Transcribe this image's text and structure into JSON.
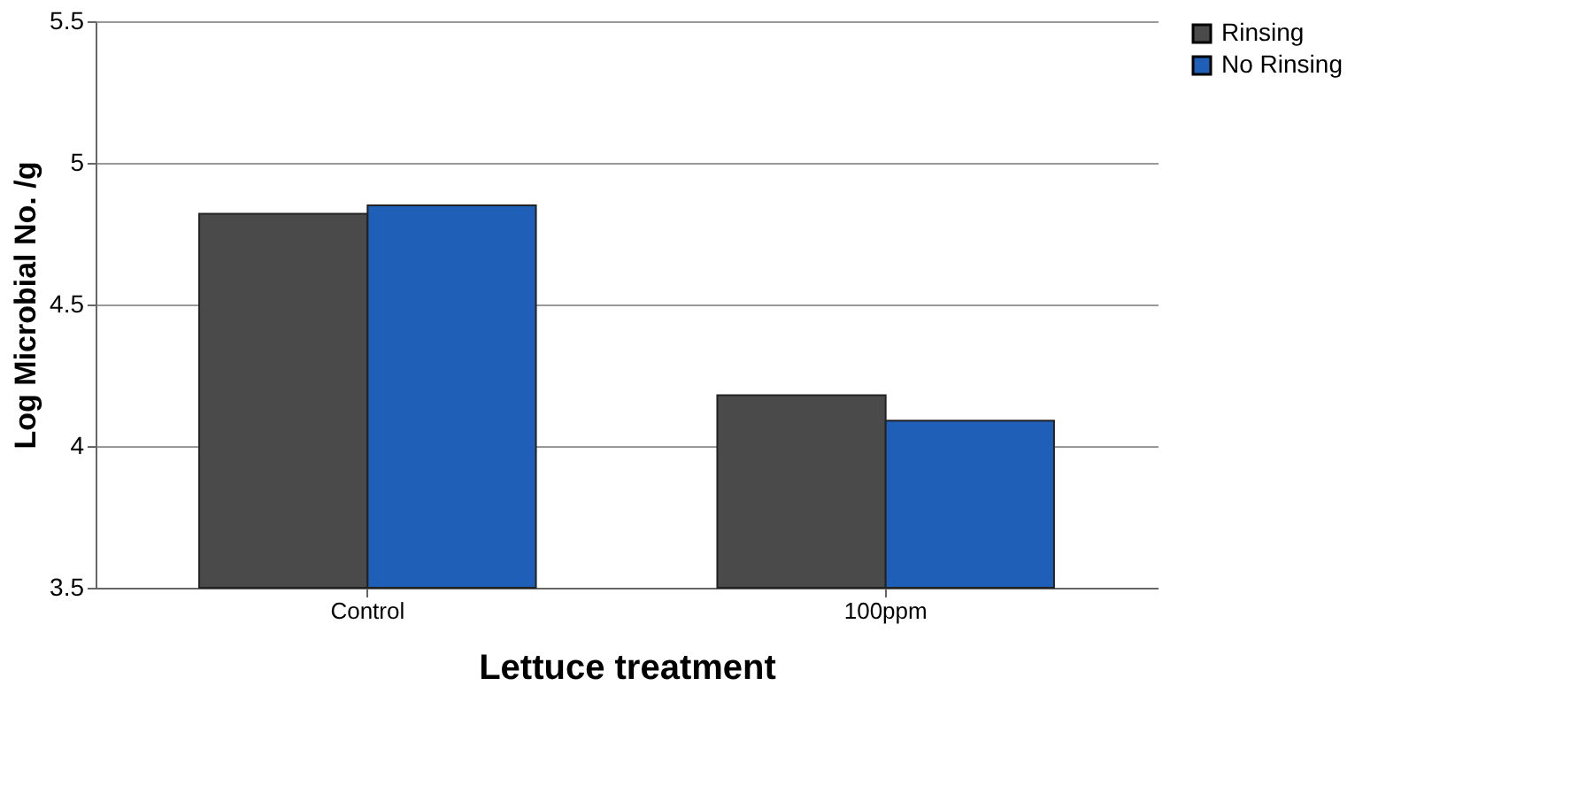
{
  "chart_data": {
    "type": "bar",
    "xlabel": "Lettuce treatment",
    "ylabel": "Log Microbial No. /g",
    "categories": [
      "Control",
      "100ppm"
    ],
    "series": [
      {
        "name": "Rinsing",
        "color": "#4a4a4a",
        "values": [
          4.82,
          4.18
        ]
      },
      {
        "name": "No Rinsing",
        "color": "#1f5fb8",
        "values": [
          4.85,
          4.09
        ]
      }
    ],
    "ylim": [
      3.5,
      5.5
    ],
    "yticks": [
      3.5,
      4,
      4.5,
      5,
      5.5
    ],
    "grid": "y",
    "legend": "right"
  }
}
